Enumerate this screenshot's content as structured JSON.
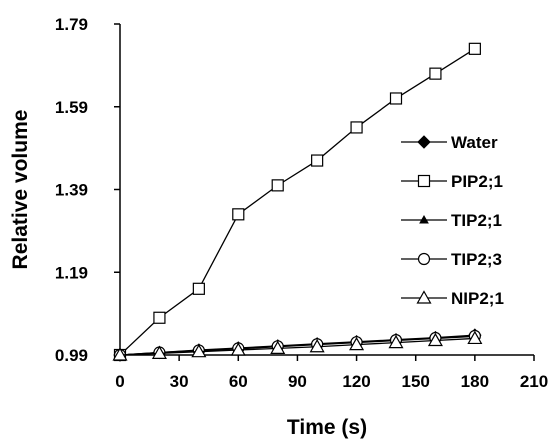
{
  "chart_data": {
    "type": "line",
    "xlabel": "Time (s)",
    "ylabel": "Relative volume",
    "xlim": [
      0,
      210
    ],
    "ylim": [
      0.99,
      1.79
    ],
    "xticks": [
      "0",
      "30",
      "60",
      "90",
      "120",
      "150",
      "180",
      "210"
    ],
    "yticks": [
      "0.99",
      "1.19",
      "1.39",
      "1.59",
      "1.79"
    ],
    "grid": false,
    "legend_position": "right",
    "x": [
      0,
      20,
      40,
      60,
      80,
      100,
      120,
      140,
      160,
      180
    ],
    "series": [
      {
        "name": "Water",
        "marker": "filled-diamond",
        "values": [
          0.99,
          0.996,
          1.002,
          1.007,
          1.012,
          1.017,
          1.022,
          1.027,
          1.032,
          1.038
        ]
      },
      {
        "name": "PIP2;1",
        "marker": "open-square",
        "values": [
          0.99,
          1.08,
          1.15,
          1.33,
          1.4,
          1.46,
          1.54,
          1.61,
          1.67,
          1.73
        ]
      },
      {
        "name": "TIP2;1",
        "marker": "filled-triangle",
        "values": [
          0.99,
          0.995,
          1.0,
          1.005,
          1.01,
          1.015,
          1.02,
          1.025,
          1.03,
          1.035
        ]
      },
      {
        "name": "TIP2;3",
        "marker": "open-circle",
        "values": [
          0.99,
          0.996,
          1.001,
          1.006,
          1.011,
          1.016,
          1.021,
          1.026,
          1.031,
          1.036
        ]
      },
      {
        "name": "NIP2;1",
        "marker": "open-triangle",
        "values": [
          0.99,
          0.994,
          0.998,
          1.002,
          1.006,
          1.01,
          1.015,
          1.02,
          1.025,
          1.03
        ]
      }
    ]
  }
}
